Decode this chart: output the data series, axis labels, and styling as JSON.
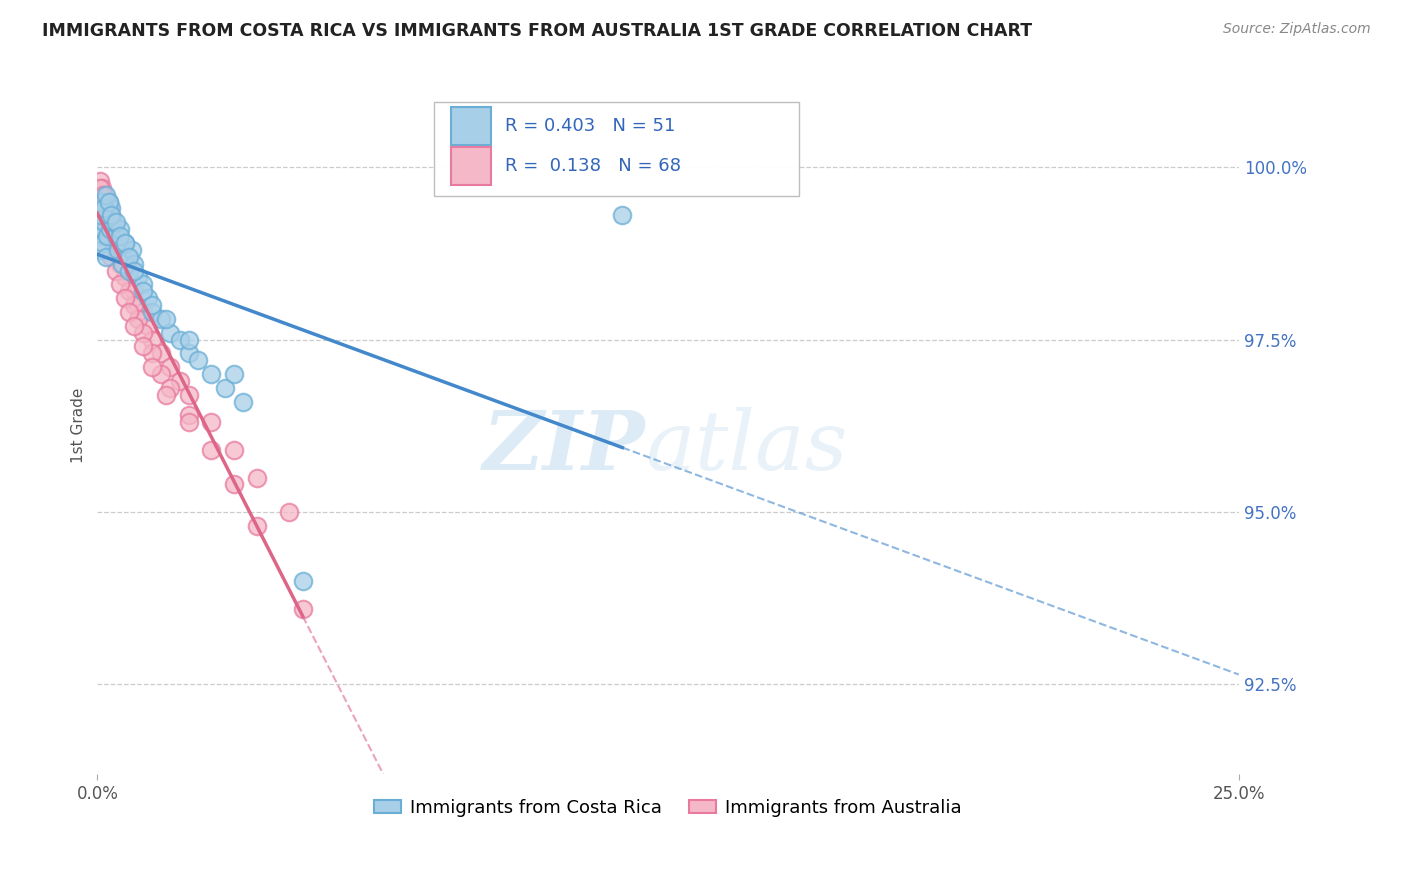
{
  "title": "IMMIGRANTS FROM COSTA RICA VS IMMIGRANTS FROM AUSTRALIA 1ST GRADE CORRELATION CHART",
  "source_text": "Source: ZipAtlas.com",
  "ylabel": "1st Grade",
  "y_tick_vals": [
    92.5,
    95.0,
    97.5,
    100.0
  ],
  "xlim": [
    0.0,
    25.0
  ],
  "ylim": [
    91.2,
    101.3
  ],
  "legend_label1": "Immigrants from Costa Rica",
  "legend_label2": "Immigrants from Australia",
  "R1": 0.403,
  "N1": 51,
  "R2": 0.138,
  "N2": 68,
  "color1": "#a8cfe8",
  "color2": "#f4b8c8",
  "edge1": "#6aaed6",
  "edge2": "#e87a9f",
  "trendline1_color": "#4488cc",
  "trendline2_color": "#dd6688",
  "costa_rica_x": [
    0.05,
    0.08,
    0.1,
    0.12,
    0.15,
    0.18,
    0.2,
    0.22,
    0.25,
    0.28,
    0.3,
    0.35,
    0.4,
    0.45,
    0.5,
    0.55,
    0.6,
    0.65,
    0.7,
    0.75,
    0.8,
    0.9,
    1.0,
    1.1,
    1.2,
    1.4,
    1.6,
    1.8,
    2.0,
    2.2,
    2.5,
    2.8,
    3.2,
    0.05,
    0.1,
    0.15,
    0.2,
    0.25,
    0.3,
    0.4,
    0.5,
    0.6,
    0.7,
    0.8,
    1.0,
    1.2,
    1.5,
    2.0,
    3.0,
    11.5,
    4.5
  ],
  "costa_rica_y": [
    99.0,
    98.8,
    99.1,
    98.9,
    99.2,
    98.7,
    99.3,
    99.0,
    99.5,
    99.1,
    99.4,
    99.2,
    99.0,
    98.8,
    99.1,
    98.6,
    98.9,
    98.7,
    98.5,
    98.8,
    98.6,
    98.4,
    98.3,
    98.1,
    97.9,
    97.8,
    97.6,
    97.5,
    97.3,
    97.2,
    97.0,
    96.8,
    96.6,
    99.3,
    99.5,
    99.4,
    99.6,
    99.5,
    99.3,
    99.2,
    99.0,
    98.9,
    98.7,
    98.5,
    98.2,
    98.0,
    97.8,
    97.5,
    97.0,
    99.3,
    94.0
  ],
  "australia_x": [
    0.05,
    0.08,
    0.1,
    0.12,
    0.15,
    0.18,
    0.2,
    0.22,
    0.25,
    0.28,
    0.3,
    0.35,
    0.4,
    0.45,
    0.5,
    0.55,
    0.6,
    0.65,
    0.7,
    0.8,
    0.9,
    1.0,
    1.1,
    1.2,
    1.4,
    1.6,
    1.8,
    2.0,
    2.5,
    3.0,
    3.5,
    4.2,
    0.05,
    0.08,
    0.12,
    0.15,
    0.2,
    0.25,
    0.3,
    0.35,
    0.4,
    0.5,
    0.6,
    0.7,
    0.8,
    0.9,
    1.0,
    1.2,
    1.4,
    1.6,
    2.0,
    2.5,
    3.0,
    0.1,
    0.15,
    0.2,
    0.3,
    0.4,
    0.5,
    0.6,
    0.7,
    0.8,
    1.0,
    1.2,
    1.5,
    2.0,
    3.5,
    4.5
  ],
  "australia_y": [
    99.8,
    99.6,
    99.7,
    99.5,
    99.6,
    99.4,
    99.5,
    99.3,
    99.4,
    99.2,
    99.3,
    99.1,
    99.0,
    98.9,
    98.8,
    98.7,
    98.6,
    98.5,
    98.4,
    98.2,
    98.0,
    97.9,
    97.7,
    97.5,
    97.3,
    97.1,
    96.9,
    96.7,
    96.3,
    95.9,
    95.5,
    95.0,
    99.7,
    99.5,
    99.6,
    99.4,
    99.3,
    99.2,
    99.1,
    98.9,
    98.8,
    98.6,
    98.4,
    98.2,
    98.0,
    97.8,
    97.6,
    97.3,
    97.0,
    96.8,
    96.4,
    95.9,
    95.4,
    99.4,
    99.2,
    99.0,
    98.7,
    98.5,
    98.3,
    98.1,
    97.9,
    97.7,
    97.4,
    97.1,
    96.7,
    96.3,
    94.8,
    93.6
  ]
}
